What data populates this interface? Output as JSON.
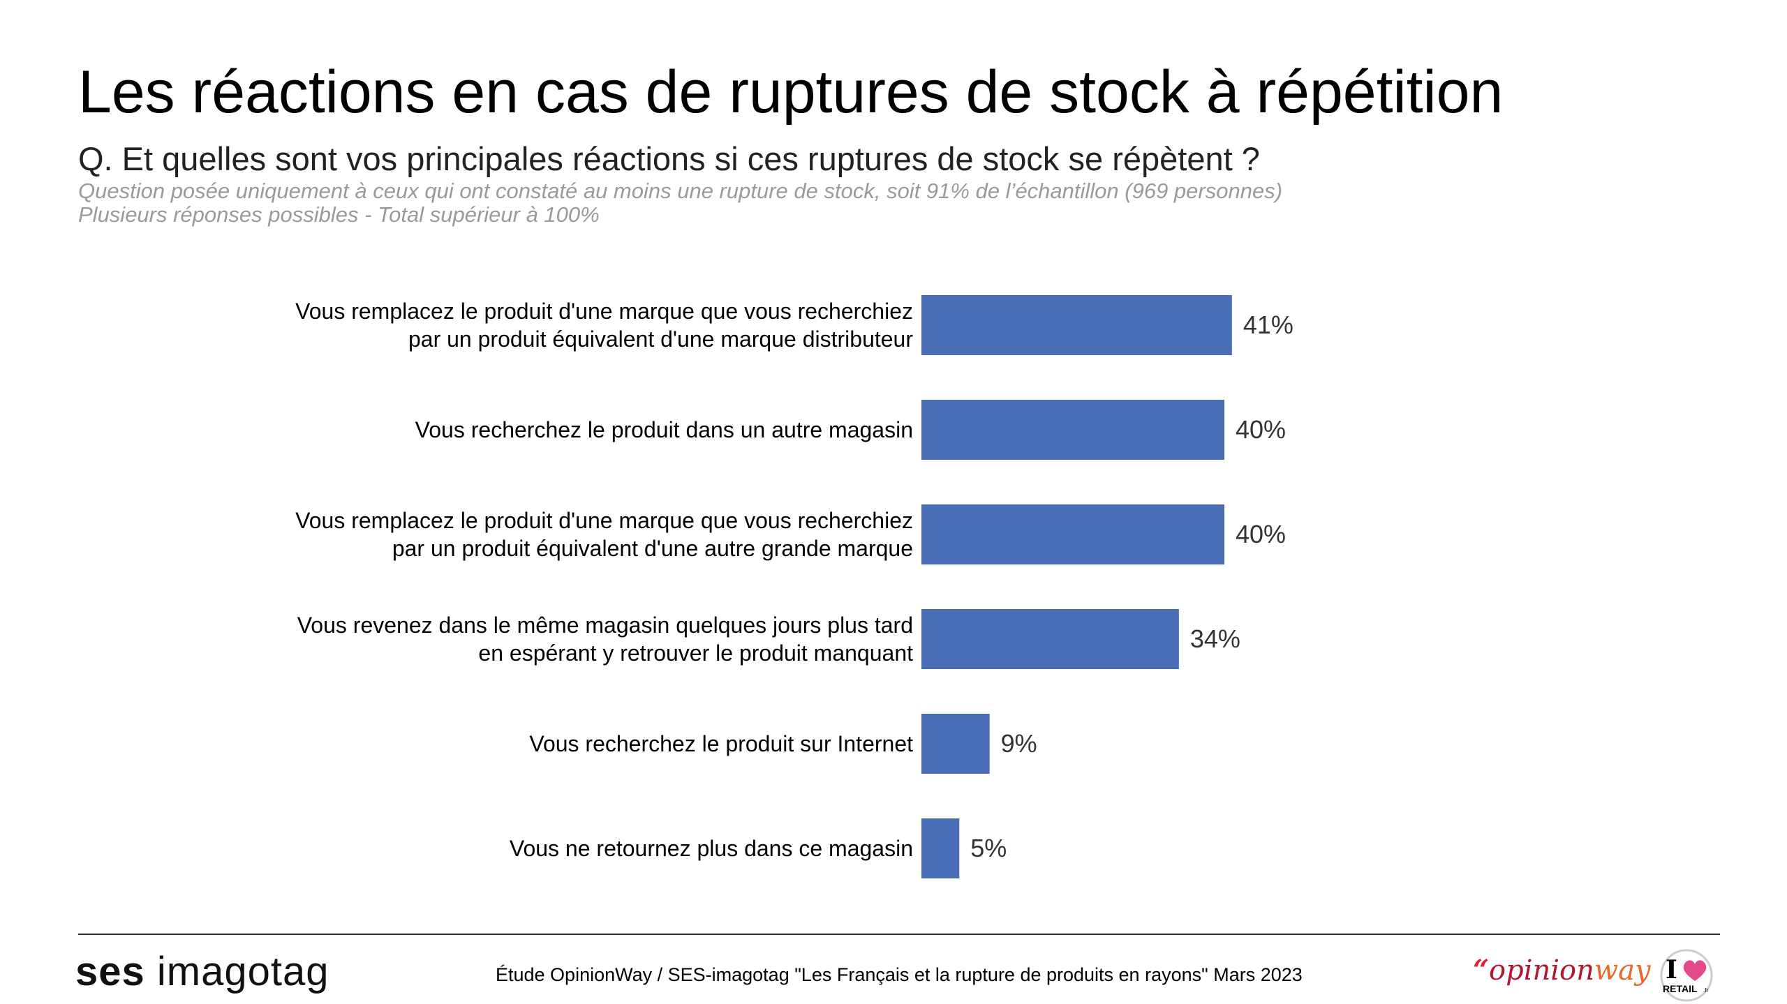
{
  "header": {
    "title": "Les réactions en cas de ruptures de stock à répétition",
    "question": "Q. Et quelles sont vos principales réactions si ces ruptures de stock se répètent ?",
    "note1": "Question posée uniquement à ceux qui ont constaté au moins une rupture de stock, soit 91% de l’échantillon (969 personnes)",
    "note2": "Plusieurs réponses possibles - Total supérieur à 100%"
  },
  "chart_data": {
    "type": "bar",
    "orientation": "horizontal",
    "categories": [
      [
        "Vous remplacez le produit d'une marque que vous recherchiez",
        "par un produit équivalent d'une marque distributeur"
      ],
      [
        "Vous recherchez le produit dans un autre magasin"
      ],
      [
        "Vous remplacez le produit d'une marque que vous recherchiez",
        "par un produit équivalent d'une autre grande marque"
      ],
      [
        "Vous revenez dans le même magasin quelques jours plus tard",
        "en espérant y retrouver le produit manquant"
      ],
      [
        "Vous recherchez le produit sur Internet"
      ],
      [
        "Vous ne retournez plus dans ce magasin"
      ]
    ],
    "values": [
      41,
      40,
      40,
      34,
      9,
      5
    ],
    "value_labels": [
      "41%",
      "40%",
      "40%",
      "34%",
      "9%",
      "5%"
    ],
    "unit": "%",
    "bar_color": "#4A6EB5",
    "grid": false,
    "legend": "none"
  },
  "footer": {
    "logo_ses_bold": "ses",
    "logo_ses_rest": "imagotag",
    "source": "Étude OpinionWay / SES-imagotag \"Les Français et la rupture de produits en rayons\" Mars 2023",
    "logo_opinion_quote": "“",
    "logo_opinion_part1": "opinion",
    "logo_opinion_part2": "way",
    "logo_retail_i": "I",
    "logo_retail_word": "RETAIL",
    "logo_retail_suffix": ".fr"
  },
  "colors": {
    "bar": "#4A6EB5",
    "note_text": "#9a9a9a",
    "retail_heart": "#E4498C"
  }
}
